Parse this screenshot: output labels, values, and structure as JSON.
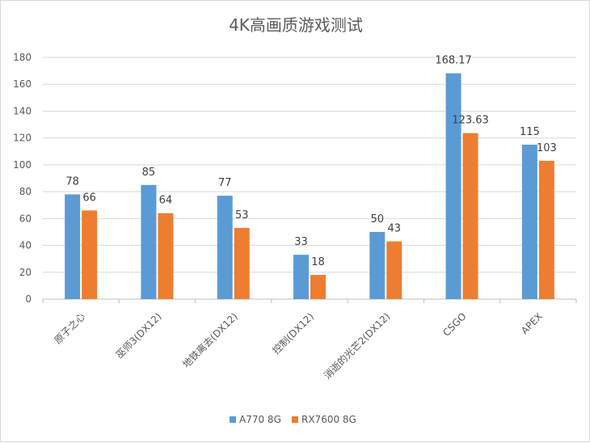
{
  "chart_data": {
    "type": "bar",
    "title": "4K高画质游戏测试",
    "categories": [
      "原子之心",
      "巫师3(DX12)",
      "地铁离去(DX12)",
      "控制(DX12)",
      "消逝的光芒2(DX12)",
      "CSGO",
      "APEX"
    ],
    "series": [
      {
        "name": "A770 8G",
        "color": "#5b9bd5",
        "values": [
          78,
          85,
          77,
          33,
          50,
          168.17,
          115
        ],
        "labels": [
          "78",
          "85",
          "77",
          "33",
          "50",
          "168.17",
          "115"
        ]
      },
      {
        "name": "RX7600 8G",
        "color": "#ed7d31",
        "values": [
          66,
          64,
          53,
          18,
          43,
          123.63,
          103
        ],
        "labels": [
          "66",
          "64",
          "53",
          "18",
          "43",
          "123.63",
          "103"
        ]
      }
    ],
    "ylim": [
      0,
      180
    ],
    "yticks": [
      "0",
      "20",
      "40",
      "60",
      "80",
      "100",
      "120",
      "140",
      "160",
      "180"
    ],
    "grid": true,
    "legend_position": "bottom",
    "xlabel": "",
    "ylabel": ""
  }
}
